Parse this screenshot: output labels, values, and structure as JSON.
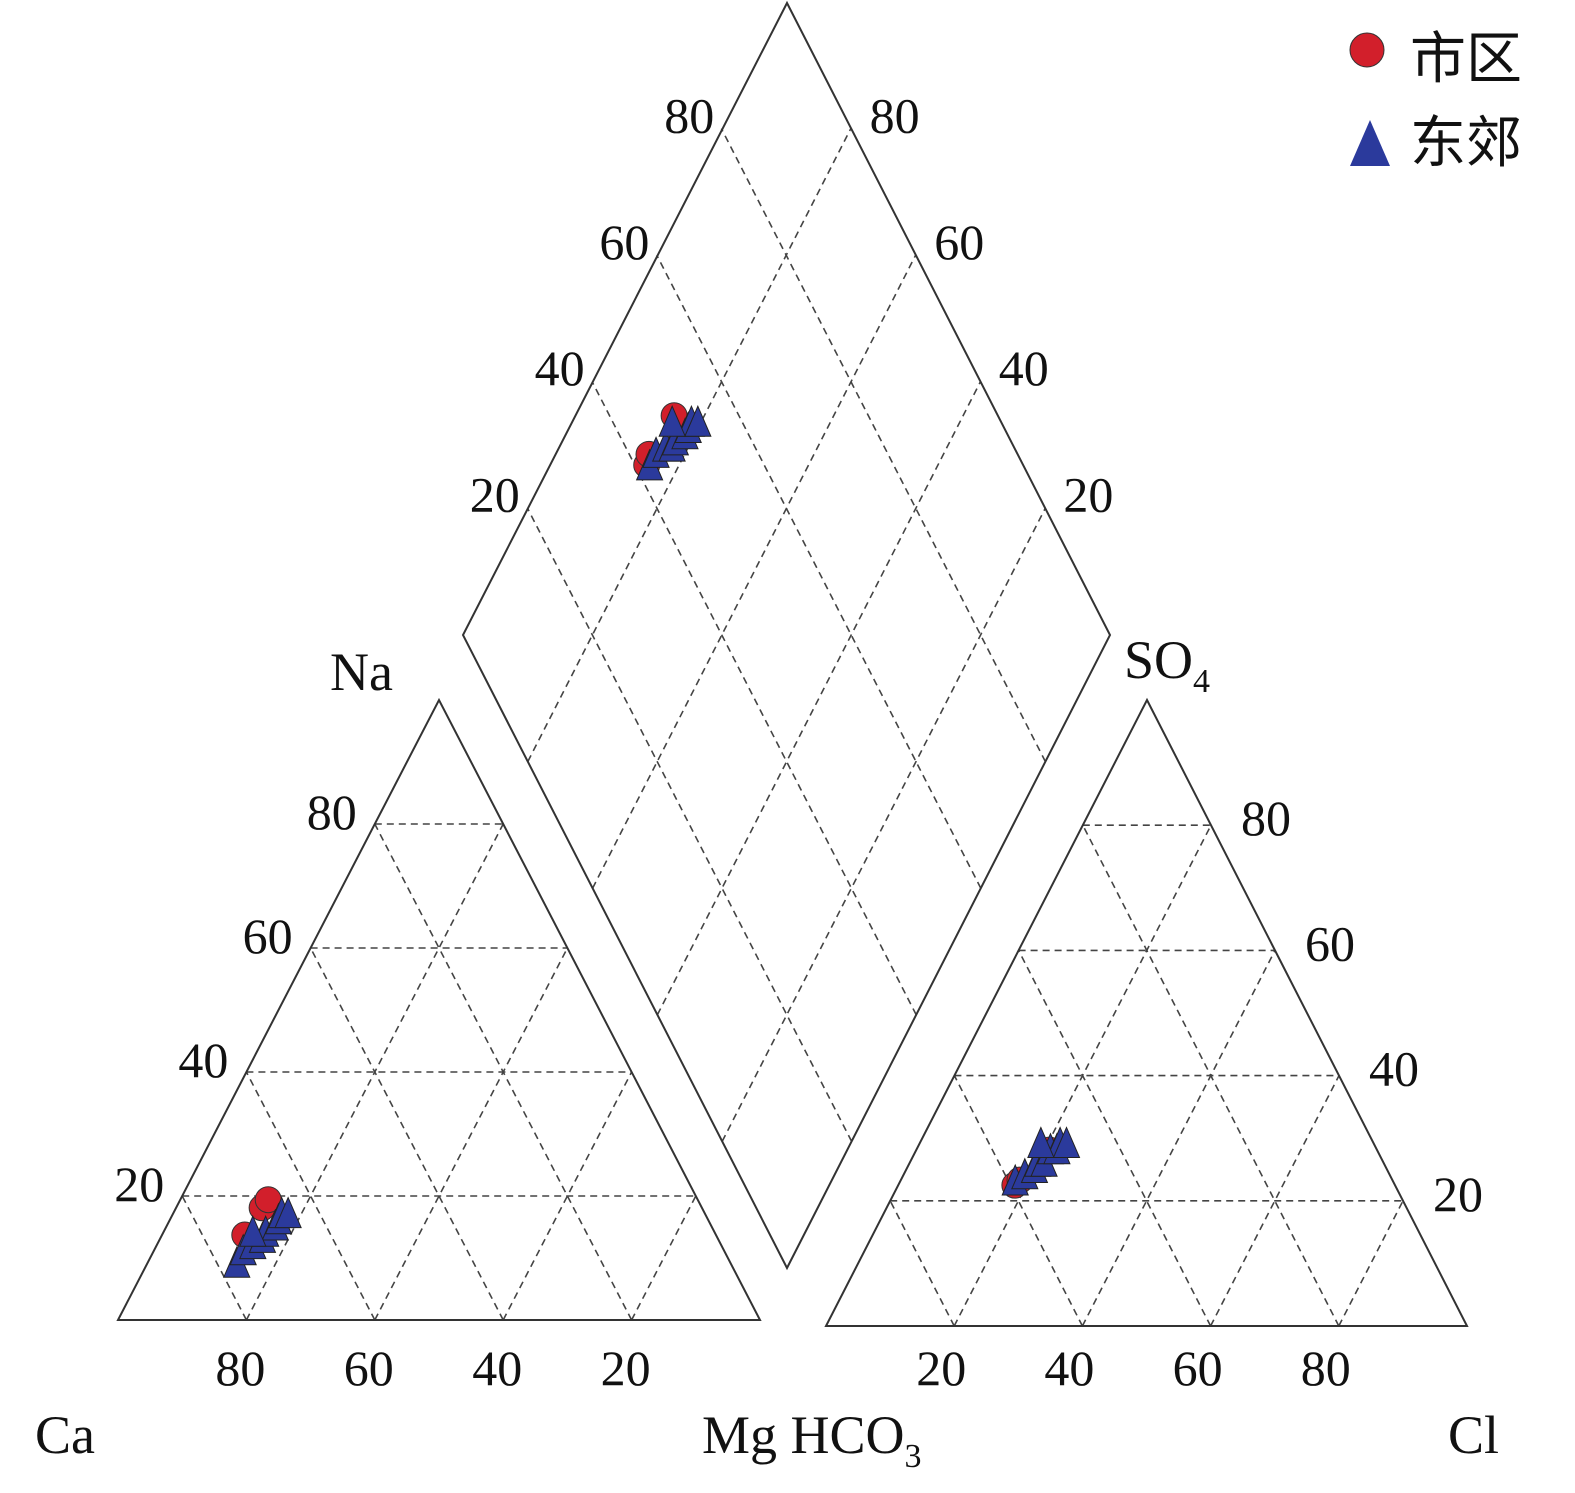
{
  "chart_data": {
    "type": "scatter",
    "subtype": "piper-diagram",
    "title": "",
    "colors": {
      "shiqu": "#d21f2b",
      "dongjiao": "#2b3a9c",
      "outline": "#333333",
      "grid": "#444444"
    },
    "legend": {
      "placement": "top-right",
      "entries": [
        {
          "label": "市区",
          "marker": "circle",
          "color": "#d21f2b"
        },
        {
          "label": "东郊",
          "marker": "triangle",
          "color": "#2b3a9c"
        }
      ]
    },
    "axis_labels": {
      "ca": "Ca",
      "na": "Na",
      "mg_hco3": "Mg HCO",
      "hco3_sub": "3",
      "cl": "Cl",
      "so4": "SO",
      "so4_sub": "4"
    },
    "ticks": {
      "cation_bottom": [
        "80",
        "60",
        "40",
        "20"
      ],
      "cation_left": [
        "20",
        "40",
        "60",
        "80"
      ],
      "anion_bottom": [
        "20",
        "40",
        "60",
        "80"
      ],
      "anion_right": [
        "20",
        "40",
        "60",
        "80"
      ],
      "diamond_left": [
        "20",
        "40",
        "60",
        "80"
      ],
      "diamond_right": [
        "20",
        "40",
        "60",
        "80"
      ]
    },
    "grid_step_percent": 20,
    "samples": [
      {
        "group": "市区",
        "cation": {
          "Ca": 68.5,
          "Mg": 13.4,
          "Na": 18.1
        },
        "anion": {
          "HCO3": 59.3,
          "Cl": 18.2,
          "SO4": 22.5
        }
      },
      {
        "group": "市区",
        "cation": {
          "Ca": 73.4,
          "Mg": 12.9,
          "Na": 13.7
        },
        "anion": {
          "HCO3": 58.1,
          "Cl": 18.6,
          "SO4": 23.3
        }
      },
      {
        "group": "市区",
        "cation": {
          "Ca": 66.9,
          "Mg": 13.7,
          "Na": 19.4
        },
        "anion": {
          "HCO3": 51.1,
          "Cl": 20.8,
          "SO4": 28.1
        }
      },
      {
        "group": "东郊",
        "cation": {
          "Ca": 77,
          "Mg": 14,
          "Na": 9
        },
        "anion": {
          "HCO3": 59,
          "Cl": 18,
          "SO4": 23
        }
      },
      {
        "group": "东郊",
        "cation": {
          "Ca": 75,
          "Mg": 14,
          "Na": 11
        },
        "anion": {
          "HCO3": 57,
          "Cl": 19,
          "SO4": 24
        }
      },
      {
        "group": "东郊",
        "cation": {
          "Ca": 73,
          "Mg": 15,
          "Na": 12
        },
        "anion": {
          "HCO3": 55,
          "Cl": 20,
          "SO4": 25
        }
      },
      {
        "group": "东郊",
        "cation": {
          "Ca": 71,
          "Mg": 16,
          "Na": 13
        },
        "anion": {
          "HCO3": 54,
          "Cl": 20,
          "SO4": 26
        }
      },
      {
        "group": "东郊",
        "cation": {
          "Ca": 70,
          "Mg": 16,
          "Na": 14
        },
        "anion": {
          "HCO3": 53,
          "Cl": 21,
          "SO4": 26
        }
      },
      {
        "group": "东郊",
        "cation": {
          "Ca": 68,
          "Mg": 17,
          "Na": 15
        },
        "anion": {
          "HCO3": 51,
          "Cl": 21,
          "SO4": 28
        }
      },
      {
        "group": "东郊",
        "cation": {
          "Ca": 67,
          "Mg": 17,
          "Na": 16
        },
        "anion": {
          "HCO3": 50,
          "Cl": 22,
          "SO4": 28
        }
      },
      {
        "group": "东郊",
        "cation": {
          "Ca": 66,
          "Mg": 17,
          "Na": 17
        },
        "anion": {
          "HCO3": 49,
          "Cl": 22,
          "SO4": 29
        }
      },
      {
        "group": "东郊",
        "cation": {
          "Ca": 65,
          "Mg": 18,
          "Na": 17
        },
        "anion": {
          "HCO3": 48,
          "Cl": 23,
          "SO4": 29
        }
      },
      {
        "group": "东郊",
        "cation": {
          "Ca": 72,
          "Mg": 14,
          "Na": 14
        },
        "anion": {
          "HCO3": 52,
          "Cl": 19,
          "SO4": 29
        }
      }
    ]
  }
}
